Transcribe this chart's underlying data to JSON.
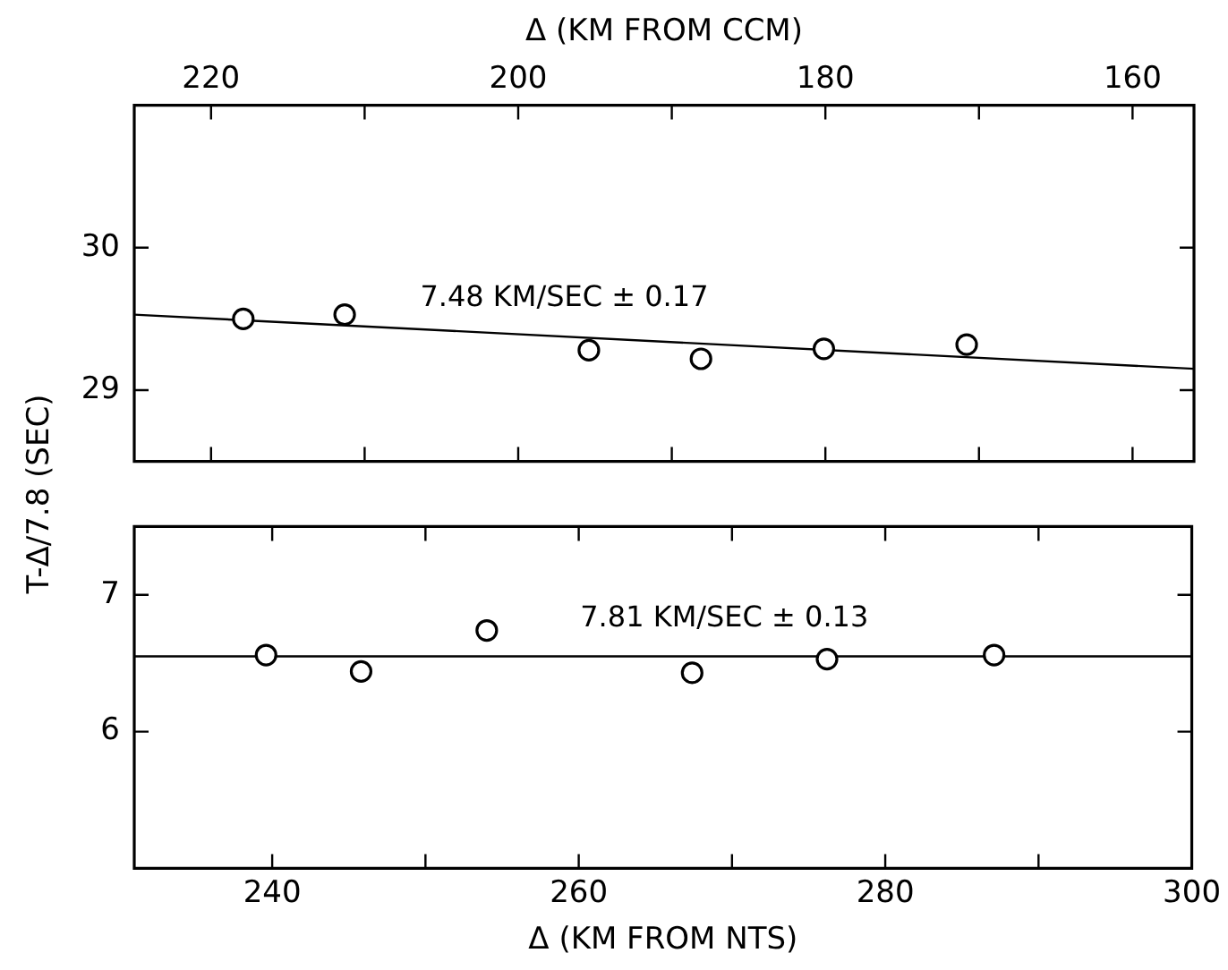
{
  "chart_data": [
    {
      "type": "scatter",
      "ylabel": "T-Δ/7.8 (SEC)",
      "xlabel": "Δ (KM FROM CCM)",
      "xlim": [
        225,
        156
      ],
      "xticks": [
        220,
        {
          "value": 210,
          "label": null
        },
        200,
        {
          "value": 190,
          "label": null
        },
        180,
        {
          "value": 170,
          "label": null
        },
        160
      ],
      "ylim": [
        28.5,
        31
      ],
      "yticks": [
        29,
        30
      ],
      "marker": "circle",
      "series": [
        {
          "color": "#000000",
          "x": [
            217.9,
            211.3,
            195.4,
            188.1,
            180.1,
            170.8
          ],
          "values": [
            29.5,
            29.53,
            29.28,
            29.22,
            29.29,
            29.32
          ]
        },
        {
          "type": "line",
          "marker": "none",
          "color": "#000000",
          "x": [
            225,
            156
          ],
          "values": [
            29.53,
            29.15
          ]
        }
      ],
      "annotations": [
        {
          "text": "7.48 KM/SEC ± 0.17",
          "x": 197,
          "y": 29.38
        }
      ]
    },
    {
      "type": "scatter",
      "xlabel": "Δ (KM FROM NTS)",
      "xlim": [
        231,
        300
      ],
      "xticks": [
        240,
        {
          "value": 250,
          "label": null
        },
        260,
        {
          "value": 270,
          "label": null
        },
        280,
        {
          "value": 290,
          "label": null
        },
        300
      ],
      "ylim": [
        5,
        7.5
      ],
      "yticks": [
        6,
        7
      ],
      "marker": "circle",
      "series": [
        {
          "color": "#000000",
          "x": [
            239.6,
            245.8,
            254,
            267.4,
            276.2,
            287.1
          ],
          "values": [
            6.56,
            6.44,
            6.74,
            6.43,
            6.53,
            6.56
          ]
        },
        {
          "type": "line",
          "marker": "none",
          "color": "#000000",
          "x": [
            231,
            300
          ],
          "values": [
            6.55,
            6.55
          ]
        }
      ],
      "annotations": [
        {
          "text": "7.81 KM/SEC ± 0.13",
          "x": 269.5,
          "y": 6.55
        }
      ]
    }
  ]
}
